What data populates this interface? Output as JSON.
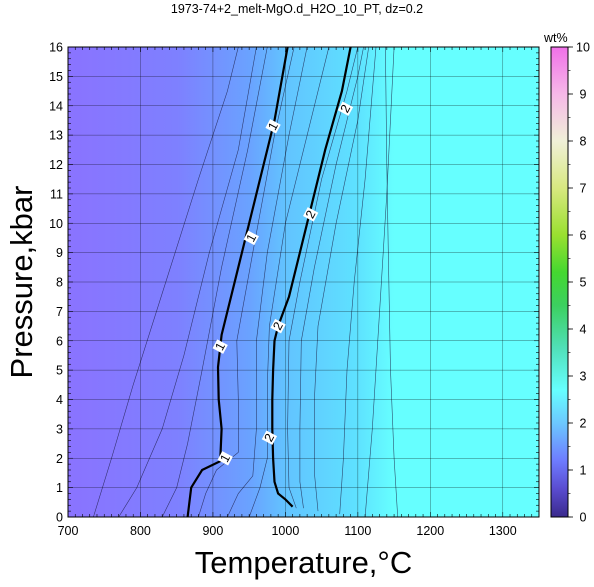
{
  "chart_data": {
    "type": "heatmap",
    "title": "1973-74+2_melt-MgO.d_H2O_10_PT, dz=0.2",
    "xlabel": "Temperature,°C",
    "ylabel": "Pressure,kbar",
    "xlim": [
      700,
      1350
    ],
    "ylim": [
      0,
      16
    ],
    "x_ticks": [
      "700",
      "800",
      "900",
      "1000",
      "1100",
      "1200",
      "1300"
    ],
    "y_ticks": [
      "0",
      "1",
      "2",
      "3",
      "4",
      "5",
      "6",
      "7",
      "8",
      "9",
      "10",
      "11",
      "12",
      "13",
      "14",
      "15",
      "16"
    ],
    "grid": true,
    "colorbar": {
      "title": "wt%",
      "range": [
        0,
        10
      ],
      "ticks": [
        "0",
        "1",
        "2",
        "3",
        "4",
        "5",
        "6",
        "7",
        "8",
        "9",
        "10"
      ],
      "placement": "right"
    },
    "labeled_contours": [
      {
        "level": "1",
        "points": [
          [
            865,
            0
          ],
          [
            870,
            1
          ],
          [
            885,
            1.6
          ],
          [
            910,
            1.9
          ],
          [
            912,
            3
          ],
          [
            908,
            4
          ],
          [
            907,
            5.1
          ],
          [
            912,
            6.2
          ],
          [
            935,
            8.5
          ],
          [
            960,
            11
          ],
          [
            985,
            13.5
          ],
          [
            1003,
            16
          ]
        ],
        "label_positions": [
          [
            917,
            2.0
          ],
          [
            910,
            5.8
          ],
          [
            953,
            9.5
          ],
          [
            983,
            13.3
          ]
        ]
      },
      {
        "level": "2",
        "points": [
          [
            1010,
            0.35
          ],
          [
            1000,
            0.6
          ],
          [
            990,
            0.8
          ],
          [
            985,
            1.2
          ],
          [
            983,
            2
          ],
          [
            982,
            3
          ],
          [
            982,
            4
          ],
          [
            983,
            5
          ],
          [
            985,
            6
          ],
          [
            990,
            6.5
          ],
          [
            1005,
            7.5
          ],
          [
            1030,
            10
          ],
          [
            1055,
            12.5
          ],
          [
            1078,
            14.5
          ],
          [
            1090,
            16
          ]
        ],
        "label_positions": [
          [
            978,
            2.7
          ],
          [
            990,
            6.5
          ],
          [
            1035,
            10.3
          ],
          [
            1083,
            13.9
          ]
        ]
      }
    ],
    "thin_contours": [
      [
        [
          735,
          0
        ],
        [
          760,
          2
        ],
        [
          790,
          4.5
        ],
        [
          835,
          8
        ],
        [
          880,
          11.5
        ],
        [
          920,
          14.5
        ],
        [
          935,
          16
        ]
      ],
      [
        [
          770,
          0
        ],
        [
          795,
          1
        ],
        [
          830,
          3
        ],
        [
          860,
          5.5
        ],
        [
          895,
          9
        ],
        [
          935,
          12.5
        ],
        [
          960,
          16
        ]
      ],
      [
        [
          830,
          0
        ],
        [
          850,
          1
        ],
        [
          865,
          2.5
        ],
        [
          885,
          5
        ],
        [
          912,
          8.5
        ],
        [
          948,
          12.5
        ],
        [
          975,
          16
        ]
      ],
      [
        [
          880,
          0
        ],
        [
          890,
          0.8
        ],
        [
          905,
          1.6
        ],
        [
          935,
          2.2
        ],
        [
          935,
          4
        ],
        [
          933,
          6
        ],
        [
          955,
          9
        ],
        [
          985,
          13
        ],
        [
          1012,
          16
        ]
      ],
      [
        [
          920,
          0
        ],
        [
          935,
          0.8
        ],
        [
          955,
          1.4
        ],
        [
          960,
          3
        ],
        [
          960,
          6
        ],
        [
          975,
          9
        ],
        [
          1005,
          13
        ],
        [
          1030,
          16
        ]
      ],
      [
        [
          950,
          0
        ],
        [
          965,
          1.0
        ],
        [
          975,
          2.0
        ],
        [
          975,
          4.5
        ],
        [
          978,
          6.5
        ],
        [
          1000,
          10
        ],
        [
          1040,
          14
        ],
        [
          1060,
          16
        ]
      ],
      [
        [
          1015,
          0.3
        ],
        [
          1005,
          1.0
        ],
        [
          1003,
          3
        ],
        [
          1005,
          6
        ],
        [
          1020,
          8
        ],
        [
          1050,
          11.5
        ],
        [
          1085,
          14.5
        ],
        [
          1100,
          16
        ]
      ],
      [
        [
          1025,
          0.3
        ],
        [
          1020,
          1.2
        ],
        [
          1020,
          3
        ],
        [
          1022,
          6
        ],
        [
          1040,
          8.5
        ],
        [
          1070,
          12
        ],
        [
          1100,
          15
        ],
        [
          1108,
          16
        ]
      ],
      [
        [
          1045,
          0.2
        ],
        [
          1040,
          1.5
        ],
        [
          1040,
          4
        ],
        [
          1045,
          6.5
        ],
        [
          1070,
          10
        ],
        [
          1100,
          13.5
        ],
        [
          1115,
          16
        ]
      ],
      [
        [
          1075,
          0.1
        ],
        [
          1080,
          2
        ],
        [
          1085,
          5
        ],
        [
          1095,
          8
        ],
        [
          1110,
          11.5
        ],
        [
          1125,
          16
        ]
      ],
      [
        [
          1110,
          0
        ],
        [
          1120,
          3
        ],
        [
          1130,
          7
        ],
        [
          1140,
          11
        ],
        [
          1150,
          16
        ]
      ],
      [
        [
          1155,
          0
        ],
        [
          1150,
          2
        ],
        [
          1145,
          5
        ],
        [
          1142,
          9
        ],
        [
          1140,
          12
        ],
        [
          1138,
          16
        ]
      ]
    ],
    "series": [
      {
        "name": "",
        "color_stops": [
          {
            "x": 700,
            "color": "#8a73ff"
          },
          {
            "x": 850,
            "color": "#7e80ff"
          },
          {
            "x": 950,
            "color": "#6aa2ff"
          },
          {
            "x": 1000,
            "color": "#62c3ff"
          },
          {
            "x": 1100,
            "color": "#5ee2ff"
          },
          {
            "x": 1150,
            "color": "#66ffff"
          },
          {
            "x": 1350,
            "color": "#66ffff"
          }
        ]
      }
    ]
  }
}
